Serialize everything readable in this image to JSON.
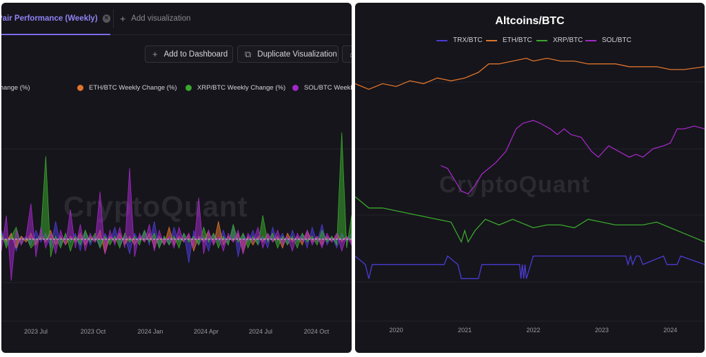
{
  "left_panel": {
    "tab_active_label": "Pair Performance (Weekly)",
    "tab_add_label": "Add visualization",
    "buttons": {
      "add_to_dashboard": "Add to Dashboard",
      "duplicate": "Duplicate Visualization"
    },
    "watermark": "CryptoQuant"
  },
  "right_panel": {
    "watermark": "CryptoQuant"
  },
  "colors": {
    "background": "#16151b",
    "accent": "#7a6df0",
    "trx": "#4a3cd6",
    "eth": "#e0742c",
    "xrp": "#3aa82e",
    "sol": "#a328c8"
  },
  "chart_data": [
    {
      "type": "area",
      "title": "",
      "xlabel": "",
      "ylabel": "",
      "grid": true,
      "legend_position": "top",
      "x_ticks": [
        "2023 Jul",
        "2023 Oct",
        "2024 Jan",
        "2024 Apr",
        "2024 Jul",
        "2024 Oct"
      ],
      "series": [
        {
          "name": "TRX/BTC Weekly Change (%)",
          "legend_label": "TRX/BTC Weekly Change (%)",
          "color": "#4a3cd6",
          "values": [
            3,
            -2,
            2,
            -4,
            1,
            0,
            -2,
            3,
            -1,
            2,
            -3,
            6,
            -2,
            1,
            -1,
            2,
            -4,
            3,
            -2,
            1,
            -3,
            2,
            -1,
            4,
            -2,
            1,
            -5,
            2,
            -1,
            3,
            -2,
            6,
            -3,
            1,
            -2,
            4,
            -1,
            2,
            -8,
            3,
            -2,
            1,
            -4,
            2,
            -1,
            3,
            -2,
            5,
            -6,
            2,
            -1,
            3,
            -2,
            1,
            -3,
            4,
            -1,
            2,
            -2,
            3,
            -1,
            2,
            -3,
            4,
            -1,
            5,
            -2,
            1,
            -3,
            2,
            -1,
            2
          ]
        },
        {
          "name": "ETH/BTC Weekly Change (%)",
          "legend_label": "ETH/BTC Weekly Change (%)",
          "color": "#e0742c",
          "values": [
            1,
            -1,
            2,
            -3,
            1,
            -1,
            2,
            -2,
            1,
            -1,
            3,
            -2,
            1,
            -2,
            1,
            -1,
            2,
            -2,
            1,
            -1,
            3,
            -5,
            1,
            -1,
            2,
            -2,
            1,
            -2,
            1,
            -1,
            2,
            -3,
            1,
            -2,
            4,
            -2,
            1,
            -1,
            2,
            -4,
            1,
            -1,
            3,
            -2,
            6,
            -2,
            1,
            -1,
            2,
            -5,
            1,
            -2,
            1,
            -1,
            2,
            -1,
            1,
            -3,
            2,
            -1,
            1,
            -2,
            3,
            -1,
            1,
            -2,
            1,
            -1,
            2,
            -1,
            1,
            -1
          ]
        },
        {
          "name": "XRP/BTC Weekly Change (%)",
          "legend_label": "XRP/BTC Weekly Change (%)",
          "color": "#3aa82e",
          "values": [
            2,
            -3,
            1,
            4,
            -2,
            1,
            -3,
            -1,
            2,
            28,
            -6,
            1,
            -3,
            2,
            -4,
            1,
            -2,
            3,
            -1,
            2,
            -3,
            1,
            -2,
            1,
            -3,
            2,
            -1,
            1,
            -2,
            3,
            -1,
            2,
            -3,
            1,
            -2,
            1,
            -3,
            2,
            -1,
            1,
            -2,
            4,
            -1,
            2,
            -3,
            1,
            -2,
            5,
            -1,
            2,
            -3,
            1,
            -2,
            8,
            -1,
            2,
            -3,
            1,
            -2,
            1,
            -3,
            2,
            -1,
            1,
            -2,
            3,
            -1,
            1,
            -2,
            36,
            -3,
            8
          ]
        },
        {
          "name": "SOL/BTC Weekly Change (%)",
          "legend_label": "SOL/BTC Weekly Change (%)",
          "color": "#a328c8",
          "values": [
            -4,
            8,
            -14,
            3,
            -2,
            1,
            12,
            -6,
            4,
            -3,
            2,
            -5,
            3,
            -2,
            10,
            -3,
            5,
            -4,
            2,
            -1,
            16,
            -5,
            3,
            -2,
            4,
            -3,
            24,
            -6,
            2,
            -1,
            5,
            -4,
            3,
            -2,
            1,
            -3,
            4,
            -1,
            2,
            -3,
            14,
            -5,
            3,
            -2,
            1,
            -4,
            2,
            -1,
            3,
            -5,
            2,
            -1,
            4,
            -3,
            2,
            -1,
            3,
            -2,
            1,
            -4,
            2,
            -1,
            3,
            -2,
            1,
            -3,
            2,
            -1,
            2,
            -4,
            1,
            -2
          ]
        }
      ]
    },
    {
      "type": "line",
      "title": "Altcoins/BTC",
      "xlabel": "",
      "ylabel": "",
      "grid": true,
      "legend_position": "top",
      "x_ticks": [
        2020,
        2021,
        2022,
        2023,
        2024
      ],
      "x_range": [
        2019.4,
        2024.5
      ],
      "y_range": [
        0,
        1
      ],
      "series": [
        {
          "name": "TRX/BTC",
          "color": "#4a3cd6",
          "x": [
            2019.4,
            2019.55,
            2019.6,
            2019.65,
            2019.7,
            2019.75,
            2020.1,
            2020.3,
            2020.7,
            2020.75,
            2020.9,
            2020.95,
            2021.2,
            2021.25,
            2021.5,
            2021.8,
            2021.82,
            2021.84,
            2021.86,
            2021.88,
            2021.9,
            2022.0,
            2022.4,
            2022.8,
            2023.2,
            2023.35,
            2023.38,
            2023.42,
            2023.45,
            2023.5,
            2023.55,
            2023.6,
            2023.9,
            2023.95,
            2024.1,
            2024.15,
            2024.5
          ],
          "y": [
            0.25,
            0.22,
            0.17,
            0.22,
            0.22,
            0.22,
            0.22,
            0.22,
            0.22,
            0.25,
            0.22,
            0.17,
            0.17,
            0.22,
            0.22,
            0.22,
            0.17,
            0.22,
            0.17,
            0.22,
            0.17,
            0.25,
            0.25,
            0.25,
            0.25,
            0.25,
            0.22,
            0.25,
            0.22,
            0.25,
            0.25,
            0.22,
            0.25,
            0.22,
            0.22,
            0.25,
            0.22
          ]
        },
        {
          "name": "ETH/BTC",
          "color": "#e0742c",
          "x": [
            2019.4,
            2019.6,
            2019.8,
            2020.0,
            2020.2,
            2020.4,
            2020.6,
            2020.8,
            2021.0,
            2021.2,
            2021.35,
            2021.5,
            2021.7,
            2021.9,
            2022.0,
            2022.2,
            2022.4,
            2022.6,
            2022.8,
            2023.0,
            2023.2,
            2023.4,
            2023.6,
            2023.8,
            2024.0,
            2024.2,
            2024.5
          ],
          "y": [
            0.86,
            0.84,
            0.86,
            0.85,
            0.87,
            0.86,
            0.88,
            0.87,
            0.88,
            0.9,
            0.93,
            0.93,
            0.94,
            0.95,
            0.94,
            0.95,
            0.94,
            0.94,
            0.93,
            0.93,
            0.93,
            0.92,
            0.92,
            0.92,
            0.91,
            0.91,
            0.92
          ]
        },
        {
          "name": "XRP/BTC",
          "color": "#3aa82e",
          "x": [
            2019.4,
            2019.6,
            2019.8,
            2020.0,
            2020.2,
            2020.4,
            2020.6,
            2020.8,
            2020.95,
            2021.0,
            2021.05,
            2021.15,
            2021.3,
            2021.5,
            2021.7,
            2021.9,
            2022.0,
            2022.2,
            2022.4,
            2022.6,
            2022.8,
            2023.0,
            2023.2,
            2023.4,
            2023.6,
            2023.8,
            2024.0,
            2024.2,
            2024.5
          ],
          "y": [
            0.46,
            0.42,
            0.42,
            0.41,
            0.4,
            0.39,
            0.38,
            0.37,
            0.3,
            0.34,
            0.3,
            0.34,
            0.38,
            0.36,
            0.38,
            0.36,
            0.35,
            0.36,
            0.36,
            0.35,
            0.38,
            0.37,
            0.36,
            0.36,
            0.36,
            0.37,
            0.35,
            0.33,
            0.3
          ]
        },
        {
          "name": "SOL/BTC",
          "color": "#a328c8",
          "x": [
            2020.65,
            2020.75,
            2020.85,
            2020.95,
            2021.05,
            2021.15,
            2021.25,
            2021.35,
            2021.45,
            2021.6,
            2021.75,
            2021.85,
            2022.0,
            2022.1,
            2022.25,
            2022.35,
            2022.45,
            2022.55,
            2022.7,
            2022.85,
            2022.95,
            2023.1,
            2023.25,
            2023.4,
            2023.5,
            2023.6,
            2023.75,
            2023.9,
            2024.0,
            2024.1,
            2024.2,
            2024.35,
            2024.5
          ],
          "y": [
            0.57,
            0.56,
            0.52,
            0.48,
            0.47,
            0.5,
            0.54,
            0.56,
            0.58,
            0.62,
            0.7,
            0.72,
            0.73,
            0.72,
            0.7,
            0.68,
            0.7,
            0.68,
            0.67,
            0.62,
            0.6,
            0.64,
            0.62,
            0.6,
            0.61,
            0.6,
            0.63,
            0.64,
            0.65,
            0.7,
            0.7,
            0.71,
            0.7
          ]
        }
      ]
    }
  ]
}
